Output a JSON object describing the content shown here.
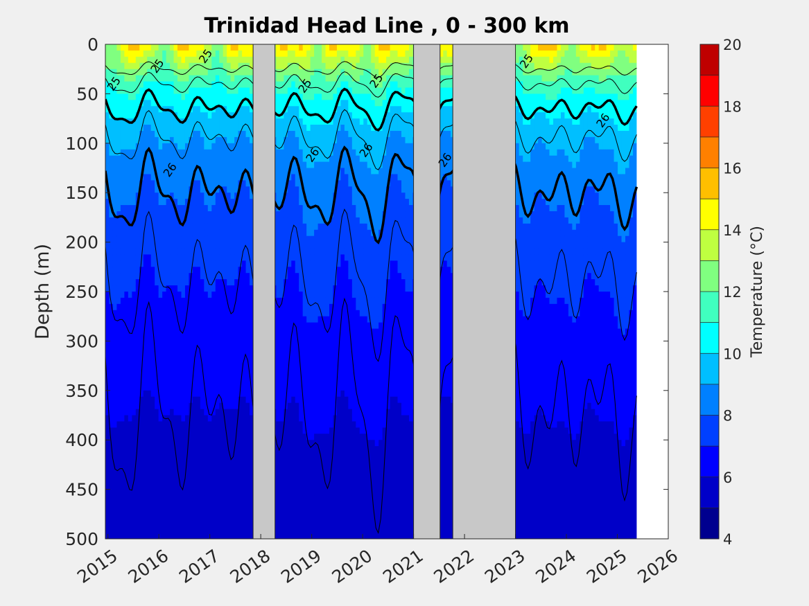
{
  "chart_data": {
    "type": "heatmap",
    "title": "Trinidad Head Line , 0 - 300 km",
    "ylabel": "Depth (m)",
    "xlabel": "",
    "xlim": [
      2014.95,
      2026.0
    ],
    "ylim": [
      0,
      500
    ],
    "y_reversed": true,
    "x_ticks": [
      "2015",
      "2016",
      "2017",
      "2018",
      "2019",
      "2020",
      "2021",
      "2022",
      "2023",
      "2024",
      "2025",
      "2026"
    ],
    "y_ticks": [
      "0",
      "50",
      "100",
      "150",
      "200",
      "250",
      "300",
      "350",
      "400",
      "450",
      "500"
    ],
    "colorbar": {
      "label": "Temperature (°C)",
      "range": [
        4,
        20
      ],
      "ticks": [
        "4",
        "6",
        "8",
        "10",
        "12",
        "14",
        "16",
        "18",
        "20"
      ],
      "levels": [
        4,
        5,
        6,
        7,
        8,
        9,
        10,
        11,
        12,
        13,
        14,
        15,
        16,
        17,
        18,
        19,
        20
      ],
      "colors": [
        "#00008f",
        "#0000c8",
        "#0000ff",
        "#0040ff",
        "#0080ff",
        "#00bfff",
        "#00ffff",
        "#40ffbf",
        "#80ff80",
        "#bfff40",
        "#ffff00",
        "#ffbf00",
        "#ff8000",
        "#ff4000",
        "#ff0000",
        "#bf0000"
      ]
    },
    "no_data_gaps": [
      [
        2017.85,
        2018.28
      ],
      [
        2021.0,
        2021.52
      ],
      [
        2021.77,
        2023.0
      ]
    ],
    "missing_data_color": "#c8c8c8",
    "isotherm_depths_approx": [
      {
        "temp": 12,
        "depth_m": 25
      },
      {
        "temp": 11,
        "depth_m": 40
      },
      {
        "temp": 10,
        "depth_m": 65
      },
      {
        "temp": 9,
        "depth_m": 95
      },
      {
        "temp": 8,
        "depth_m": 150
      },
      {
        "temp": 7,
        "depth_m": 240
      },
      {
        "temp": 6,
        "depth_m": 370
      }
    ],
    "contour_labels": [
      "25",
      "25",
      "25",
      "25",
      "26",
      "26",
      "26",
      "26",
      "25",
      "25",
      "26"
    ]
  }
}
